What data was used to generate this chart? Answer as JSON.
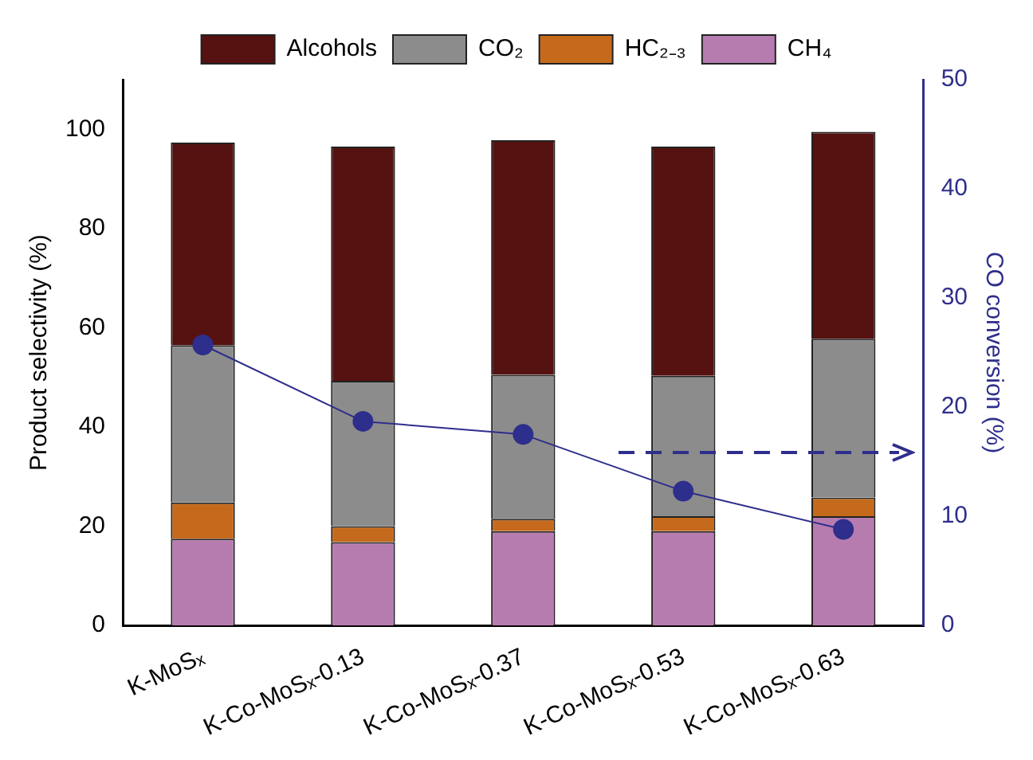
{
  "chart_data": {
    "type": "bar",
    "stacked": true,
    "ylabel": "Product selectivity (%)",
    "y2label": "CO conversion (%)",
    "categories": [
      "K-MoSₓ",
      "K-Co-MoSₓ-0.13",
      "K-Co-MoSₓ-0.37",
      "K-Co-MoSₓ-0.53",
      "K-Co-MoSₓ-0.63"
    ],
    "series": [
      {
        "name": "CH₄",
        "color": "#b77caf",
        "values": [
          17.5,
          16.8,
          19,
          19,
          22
        ]
      },
      {
        "name": "HC₂₋₃",
        "color": "#c56a1c",
        "values": [
          7.3,
          3.2,
          2.5,
          3,
          3.8
        ]
      },
      {
        "name": "CO₂",
        "color": "#8c8c8c",
        "values": [
          31.7,
          29.3,
          29,
          28.3,
          32
        ]
      },
      {
        "name": "Alcohols",
        "color": "#561111",
        "values": [
          40.8,
          47.2,
          47.3,
          46.2,
          41.7
        ]
      },
      {
        "type": "line",
        "axis": "y2",
        "color": "#2e2e8c",
        "marker": "circle",
        "values": [
          25.7,
          18.7,
          17.5,
          12.3,
          8.8
        ]
      }
    ],
    "ylim": [
      0,
      110
    ],
    "yticks": [
      0,
      20,
      40,
      60,
      80,
      100
    ],
    "y2lim": [
      0,
      50
    ],
    "y2ticks": [
      0,
      10,
      20,
      30,
      40,
      50
    ],
    "legend": "top",
    "grid": false
  }
}
